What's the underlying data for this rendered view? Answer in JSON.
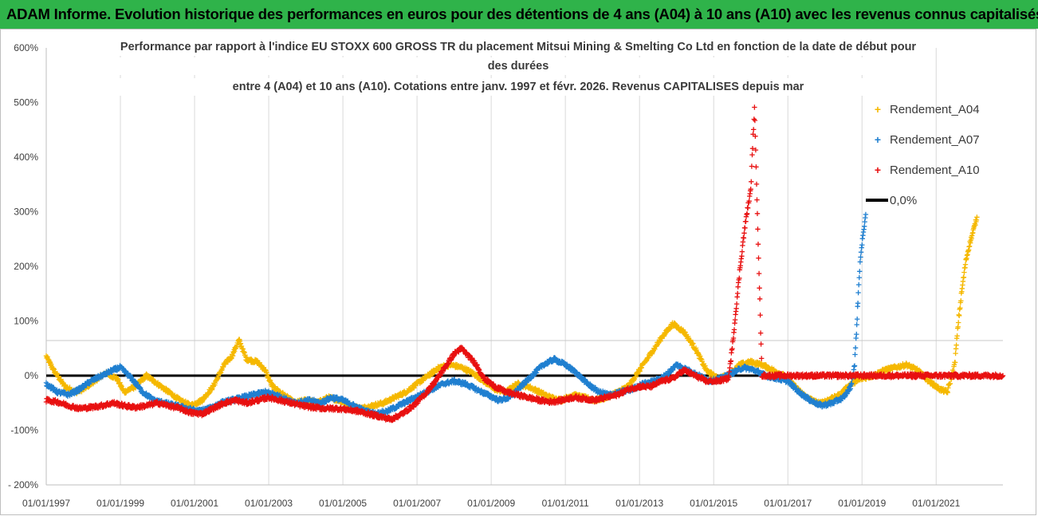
{
  "banner": {
    "title": "ADAM Informe. Evolution historique des performances en euros pour des détentions de 4 ans (A04) à 10 ans (A10) avec les revenus connus capitalisés"
  },
  "chart_data": {
    "type": "scatter",
    "title_lines": [
      "Performance par rapport à l'indice EU STOXX 600 GROSS TR  du placement Mitsui Mining & Smelting Co Ltd en fonction de la date de début pour",
      "des durées",
      "entre 4 (A04) et 10 ans (A10). Cotations entre janv. 1997 et févr. 2026. Revenus CAPITALISES depuis mar"
    ],
    "xlabel": "",
    "ylabel": "",
    "x_unit": "year (decimal)",
    "xlim": [
      1997.0,
      2022.8
    ],
    "ylim": [
      -200,
      600
    ],
    "y_ticks": [
      -200,
      -100,
      0,
      100,
      200,
      300,
      400,
      500,
      600
    ],
    "y_tick_labels": [
      "- 200%",
      "-100%",
      "0%",
      "100%",
      "200%",
      "300%",
      "400%",
      "500%",
      "600%"
    ],
    "x_ticks": [
      1997,
      1999,
      2001,
      2003,
      2005,
      2007,
      2009,
      2011,
      2013,
      2015,
      2017,
      2019,
      2021
    ],
    "x_tick_labels": [
      "01/01/1997",
      "01/01/1999",
      "01/01/2001",
      "01/01/2003",
      "01/01/2005",
      "01/01/2007",
      "01/01/2009",
      "01/01/2011",
      "01/01/2013",
      "01/01/2015",
      "01/01/2017",
      "01/01/2019",
      "01/01/2021"
    ],
    "grid": "vertical",
    "legend_position": "right",
    "series": [
      {
        "name": "Rendement_A04",
        "color": "#f5b800",
        "marker": "+",
        "points": [
          [
            1997.0,
            35
          ],
          [
            1997.2,
            10
          ],
          [
            1997.5,
            -20
          ],
          [
            1997.8,
            -30
          ],
          [
            1998.0,
            -25
          ],
          [
            1998.3,
            -10
          ],
          [
            1998.6,
            5
          ],
          [
            1998.9,
            -5
          ],
          [
            1999.1,
            -30
          ],
          [
            1999.4,
            -20
          ],
          [
            1999.7,
            0
          ],
          [
            2000.0,
            -15
          ],
          [
            2000.3,
            -30
          ],
          [
            2000.6,
            -45
          ],
          [
            2000.9,
            -55
          ],
          [
            2001.2,
            -45
          ],
          [
            2001.5,
            -20
          ],
          [
            2001.8,
            20
          ],
          [
            2002.0,
            35
          ],
          [
            2002.2,
            65
          ],
          [
            2002.4,
            30
          ],
          [
            2002.7,
            25
          ],
          [
            2002.9,
            10
          ],
          [
            2003.1,
            -20
          ],
          [
            2003.4,
            -35
          ],
          [
            2003.7,
            -50
          ],
          [
            2004.0,
            -45
          ],
          [
            2004.3,
            -50
          ],
          [
            2004.6,
            -40
          ],
          [
            2004.9,
            -45
          ],
          [
            2005.2,
            -55
          ],
          [
            2005.5,
            -60
          ],
          [
            2005.8,
            -55
          ],
          [
            2006.1,
            -50
          ],
          [
            2006.4,
            -40
          ],
          [
            2006.7,
            -30
          ],
          [
            2007.0,
            -15
          ],
          [
            2007.3,
            0
          ],
          [
            2007.6,
            15
          ],
          [
            2007.9,
            20
          ],
          [
            2008.2,
            15
          ],
          [
            2008.5,
            5
          ],
          [
            2008.8,
            -10
          ],
          [
            2009.1,
            -25
          ],
          [
            2009.4,
            -30
          ],
          [
            2009.7,
            -15
          ],
          [
            2010.0,
            -20
          ],
          [
            2010.3,
            -30
          ],
          [
            2010.6,
            -40
          ],
          [
            2010.9,
            -45
          ],
          [
            2011.2,
            -35
          ],
          [
            2011.5,
            -40
          ],
          [
            2011.8,
            -45
          ],
          [
            2012.1,
            -40
          ],
          [
            2012.4,
            -30
          ],
          [
            2012.7,
            -20
          ],
          [
            2013.0,
            10
          ],
          [
            2013.3,
            40
          ],
          [
            2013.6,
            70
          ],
          [
            2013.9,
            95
          ],
          [
            2014.2,
            80
          ],
          [
            2014.5,
            50
          ],
          [
            2014.8,
            10
          ],
          [
            2015.1,
            -5
          ],
          [
            2015.4,
            0
          ],
          [
            2015.7,
            20
          ],
          [
            2016.0,
            25
          ],
          [
            2016.3,
            20
          ],
          [
            2016.6,
            10
          ],
          [
            2016.9,
            0
          ],
          [
            2017.2,
            -20
          ],
          [
            2017.5,
            -40
          ],
          [
            2017.8,
            -50
          ],
          [
            2018.1,
            -45
          ],
          [
            2018.4,
            -35
          ],
          [
            2018.7,
            -15
          ],
          [
            2019.0,
            -5
          ],
          [
            2019.3,
            0
          ],
          [
            2019.6,
            10
          ],
          [
            2019.9,
            15
          ],
          [
            2020.2,
            20
          ],
          [
            2020.5,
            10
          ],
          [
            2020.8,
            -10
          ],
          [
            2021.1,
            -25
          ],
          [
            2021.3,
            -30
          ],
          [
            2021.5,
            20
          ],
          [
            2021.6,
            100
          ],
          [
            2021.7,
            160
          ],
          [
            2021.8,
            210
          ],
          [
            2021.9,
            240
          ],
          [
            2022.0,
            265
          ],
          [
            2022.1,
            290
          ]
        ]
      },
      {
        "name": "Rendement_A07",
        "color": "#1f7fd0",
        "marker": "+",
        "points": [
          [
            1997.0,
            -15
          ],
          [
            1997.3,
            -30
          ],
          [
            1997.6,
            -35
          ],
          [
            1997.9,
            -25
          ],
          [
            1998.2,
            -10
          ],
          [
            1998.5,
            0
          ],
          [
            1998.8,
            10
          ],
          [
            1999.0,
            15
          ],
          [
            1999.3,
            -5
          ],
          [
            1999.6,
            -30
          ],
          [
            1999.9,
            -45
          ],
          [
            2000.2,
            -50
          ],
          [
            2000.5,
            -55
          ],
          [
            2000.8,
            -60
          ],
          [
            2001.1,
            -65
          ],
          [
            2001.4,
            -60
          ],
          [
            2001.7,
            -50
          ],
          [
            2002.0,
            -45
          ],
          [
            2002.3,
            -40
          ],
          [
            2002.6,
            -35
          ],
          [
            2002.9,
            -30
          ],
          [
            2003.2,
            -35
          ],
          [
            2003.5,
            -45
          ],
          [
            2003.8,
            -50
          ],
          [
            2004.1,
            -45
          ],
          [
            2004.4,
            -50
          ],
          [
            2004.7,
            -40
          ],
          [
            2005.0,
            -45
          ],
          [
            2005.3,
            -55
          ],
          [
            2005.6,
            -65
          ],
          [
            2005.9,
            -70
          ],
          [
            2006.2,
            -65
          ],
          [
            2006.5,
            -55
          ],
          [
            2006.8,
            -45
          ],
          [
            2007.1,
            -35
          ],
          [
            2007.4,
            -25
          ],
          [
            2007.7,
            -15
          ],
          [
            2008.0,
            -10
          ],
          [
            2008.3,
            -15
          ],
          [
            2008.6,
            -25
          ],
          [
            2008.9,
            -35
          ],
          [
            2009.2,
            -45
          ],
          [
            2009.5,
            -40
          ],
          [
            2009.8,
            -20
          ],
          [
            2010.1,
            0
          ],
          [
            2010.4,
            20
          ],
          [
            2010.7,
            30
          ],
          [
            2011.0,
            20
          ],
          [
            2011.3,
            5
          ],
          [
            2011.6,
            -15
          ],
          [
            2011.9,
            -30
          ],
          [
            2012.2,
            -35
          ],
          [
            2012.5,
            -30
          ],
          [
            2012.8,
            -25
          ],
          [
            2013.1,
            -15
          ],
          [
            2013.4,
            -10
          ],
          [
            2013.7,
            0
          ],
          [
            2014.0,
            20
          ],
          [
            2014.3,
            10
          ],
          [
            2014.6,
            0
          ],
          [
            2014.9,
            -10
          ],
          [
            2015.2,
            -5
          ],
          [
            2015.5,
            5
          ],
          [
            2015.8,
            15
          ],
          [
            2016.1,
            10
          ],
          [
            2016.4,
            0
          ],
          [
            2016.7,
            -5
          ],
          [
            2017.0,
            -10
          ],
          [
            2017.3,
            -30
          ],
          [
            2017.6,
            -45
          ],
          [
            2017.9,
            -55
          ],
          [
            2018.2,
            -50
          ],
          [
            2018.5,
            -40
          ],
          [
            2018.7,
            -20
          ],
          [
            2018.8,
            20
          ],
          [
            2018.85,
            80
          ],
          [
            2018.9,
            150
          ],
          [
            2018.95,
            210
          ],
          [
            2019.0,
            240
          ],
          [
            2019.05,
            270
          ],
          [
            2019.1,
            295
          ]
        ]
      },
      {
        "name": "Rendement_A10",
        "color": "#e81010",
        "marker": "+",
        "points": [
          [
            1997.0,
            -45
          ],
          [
            1997.3,
            -48
          ],
          [
            1997.6,
            -55
          ],
          [
            1997.9,
            -60
          ],
          [
            1998.2,
            -58
          ],
          [
            1998.5,
            -55
          ],
          [
            1998.8,
            -50
          ],
          [
            1999.1,
            -55
          ],
          [
            1999.4,
            -58
          ],
          [
            1999.7,
            -55
          ],
          [
            2000.0,
            -50
          ],
          [
            2000.3,
            -55
          ],
          [
            2000.6,
            -60
          ],
          [
            2000.9,
            -68
          ],
          [
            2001.2,
            -70
          ],
          [
            2001.5,
            -60
          ],
          [
            2001.8,
            -50
          ],
          [
            2002.1,
            -45
          ],
          [
            2002.4,
            -50
          ],
          [
            2002.7,
            -45
          ],
          [
            2003.0,
            -40
          ],
          [
            2003.3,
            -45
          ],
          [
            2003.6,
            -50
          ],
          [
            2003.9,
            -55
          ],
          [
            2004.2,
            -58
          ],
          [
            2004.5,
            -60
          ],
          [
            2004.8,
            -60
          ],
          [
            2005.1,
            -62
          ],
          [
            2005.4,
            -65
          ],
          [
            2005.7,
            -70
          ],
          [
            2006.0,
            -75
          ],
          [
            2006.3,
            -80
          ],
          [
            2006.6,
            -70
          ],
          [
            2006.9,
            -55
          ],
          [
            2007.2,
            -35
          ],
          [
            2007.5,
            -10
          ],
          [
            2007.8,
            20
          ],
          [
            2008.0,
            40
          ],
          [
            2008.2,
            50
          ],
          [
            2008.4,
            35
          ],
          [
            2008.6,
            20
          ],
          [
            2008.8,
            -5
          ],
          [
            2009.1,
            -20
          ],
          [
            2009.4,
            -30
          ],
          [
            2009.7,
            -35
          ],
          [
            2010.0,
            -40
          ],
          [
            2010.3,
            -45
          ],
          [
            2010.6,
            -48
          ],
          [
            2010.9,
            -45
          ],
          [
            2011.2,
            -40
          ],
          [
            2011.5,
            -42
          ],
          [
            2011.8,
            -45
          ],
          [
            2012.1,
            -40
          ],
          [
            2012.4,
            -35
          ],
          [
            2012.7,
            -25
          ],
          [
            2013.0,
            -20
          ],
          [
            2013.3,
            -20
          ],
          [
            2013.6,
            -10
          ],
          [
            2013.9,
            -5
          ],
          [
            2014.2,
            10
          ],
          [
            2014.5,
            0
          ],
          [
            2014.8,
            -10
          ],
          [
            2015.1,
            -10
          ],
          [
            2015.4,
            -5
          ],
          [
            2015.5,
            50
          ],
          [
            2015.6,
            120
          ],
          [
            2015.7,
            190
          ],
          [
            2015.8,
            250
          ],
          [
            2015.9,
            300
          ],
          [
            2016.0,
            340
          ],
          [
            2016.05,
            420
          ],
          [
            2016.1,
            490
          ],
          [
            2016.3,
            0
          ],
          [
            2016.6,
            0
          ],
          [
            2017.0,
            0
          ],
          [
            2017.5,
            0
          ],
          [
            2018.0,
            0
          ],
          [
            2018.5,
            0
          ],
          [
            2019.0,
            0
          ],
          [
            2019.5,
            0
          ],
          [
            2020.0,
            0
          ],
          [
            2020.5,
            0
          ],
          [
            2021.0,
            0
          ],
          [
            2021.5,
            0
          ],
          [
            2022.0,
            0
          ],
          [
            2022.5,
            0
          ],
          [
            2022.8,
            0
          ]
        ]
      }
    ],
    "reference_line": {
      "name": "0,0%",
      "y": 0,
      "color": "#000000"
    }
  }
}
